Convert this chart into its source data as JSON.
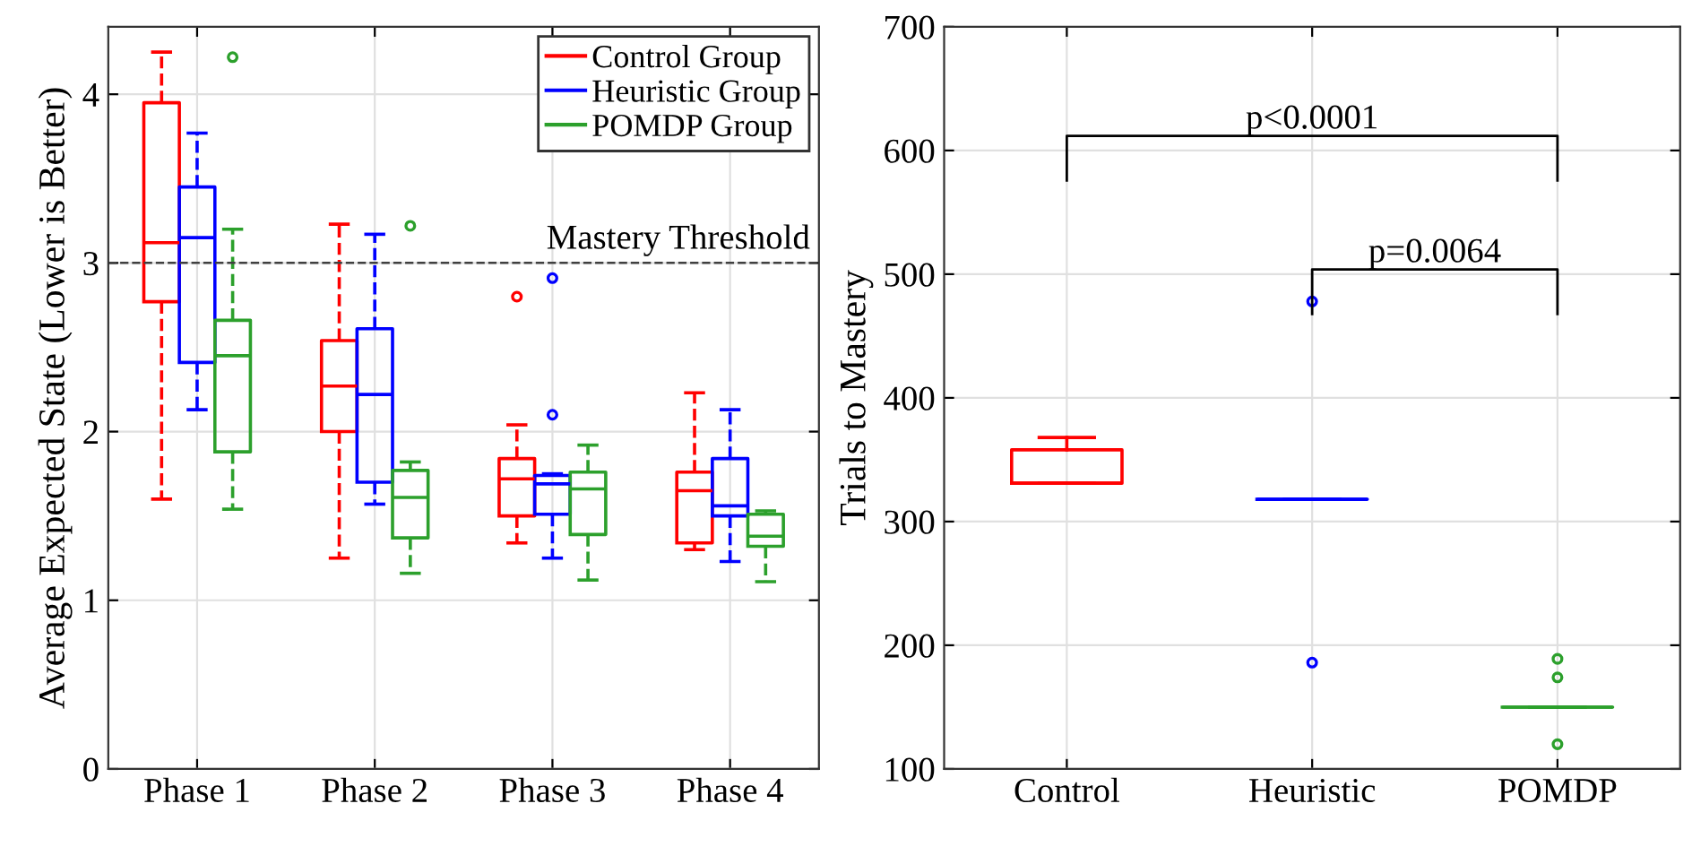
{
  "chart_data": [
    {
      "type": "box",
      "categories": [
        "Phase 1",
        "Phase 2",
        "Phase 3",
        "Phase 4"
      ],
      "ylabel": "Average Expected State (Lower is Better)",
      "ylim": [
        0,
        4.4
      ],
      "yticks": [
        0,
        1,
        2,
        3,
        4
      ],
      "grid": true,
      "legend": "top right",
      "marker": "circle",
      "line_style": "dashed",
      "ref_lines": [
        {
          "axis": "y",
          "value": 3,
          "label": "Mastery Threshold",
          "color": "#404040",
          "line_style": "dashed"
        }
      ],
      "series": [
        {
          "name": "Control Group",
          "color": "#ff0000",
          "boxes": [
            {
              "low": 1.6,
              "q1": 2.77,
              "median": 3.12,
              "q3": 3.95,
              "high": 4.25
            },
            {
              "low": 1.25,
              "q1": 2.0,
              "median": 2.27,
              "q3": 2.54,
              "high": 3.23
            },
            {
              "low": 1.34,
              "q1": 1.5,
              "median": 1.72,
              "q3": 1.84,
              "high": 2.04,
              "outliers": [
                2.8
              ]
            },
            {
              "low": 1.3,
              "q1": 1.34,
              "median": 1.65,
              "q3": 1.76,
              "high": 2.23
            }
          ]
        },
        {
          "name": "Heuristic Group",
          "color": "#0000ff",
          "boxes": [
            {
              "low": 2.13,
              "q1": 2.41,
              "median": 3.15,
              "q3": 3.45,
              "high": 3.77
            },
            {
              "low": 1.57,
              "q1": 1.7,
              "median": 2.22,
              "q3": 2.61,
              "high": 3.17
            },
            {
              "low": 1.25,
              "q1": 1.51,
              "median": 1.69,
              "q3": 1.74,
              "high": 1.75,
              "outliers": [
                2.91,
                2.1
              ]
            },
            {
              "low": 1.23,
              "q1": 1.5,
              "median": 1.56,
              "q3": 1.84,
              "high": 2.13
            }
          ]
        },
        {
          "name": "POMDP Group",
          "color": "#2ca02c",
          "boxes": [
            {
              "low": 1.54,
              "q1": 1.88,
              "median": 2.45,
              "q3": 2.66,
              "high": 3.2,
              "outliers": [
                4.22
              ]
            },
            {
              "low": 1.16,
              "q1": 1.37,
              "median": 1.61,
              "q3": 1.77,
              "high": 1.82,
              "outliers": [
                3.22
              ]
            },
            {
              "low": 1.12,
              "q1": 1.39,
              "median": 1.66,
              "q3": 1.76,
              "high": 1.92
            },
            {
              "low": 1.11,
              "q1": 1.32,
              "median": 1.38,
              "q3": 1.51,
              "high": 1.53
            }
          ]
        }
      ]
    },
    {
      "type": "box",
      "categories": [
        "Control",
        "Heuristic",
        "POMDP"
      ],
      "ylabel": "Trials to Mastery",
      "ylim": [
        100,
        700
      ],
      "yticks": [
        100,
        200,
        300,
        400,
        500,
        600,
        700
      ],
      "grid": true,
      "marker": "circle",
      "colors": [
        "#ff0000",
        "#0000ff",
        "#2ca02c"
      ],
      "boxes": [
        {
          "low": 331,
          "q1": 331,
          "median": 331,
          "q3": 358,
          "high": 368
        },
        {
          "low": 318,
          "q1": 318,
          "median": 318,
          "q3": 318,
          "high": 318,
          "outliers": [
            478,
            186
          ]
        },
        {
          "low": 150,
          "q1": 150,
          "median": 150,
          "q3": 150,
          "high": 150,
          "outliers": [
            189,
            174,
            120
          ]
        }
      ],
      "annotations": [
        "p<0.0001",
        "p=0.0064"
      ]
    }
  ]
}
